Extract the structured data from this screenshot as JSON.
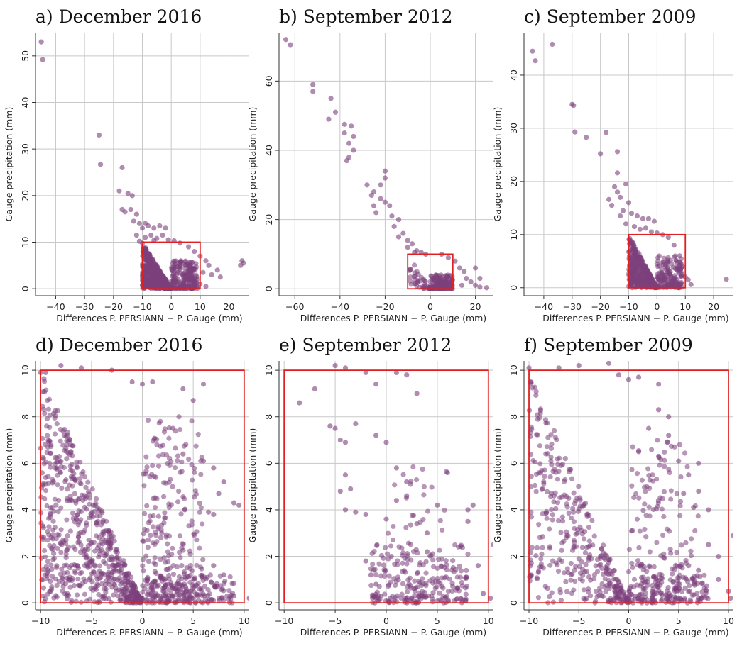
{
  "chart_data": [
    {
      "type": "scatter",
      "title": "a)  December  2016",
      "xlabel": "Differences P. PERSIANN − P. Gauge (mm)",
      "ylabel": "Gauge precipitation (mm)",
      "xlim": [
        -47,
        27
      ],
      "ylim": [
        -1.5,
        55
      ],
      "xticks": [
        -40,
        -30,
        -20,
        -10,
        0,
        10,
        20
      ],
      "yticks": [
        0,
        10,
        20,
        30,
        40,
        50
      ],
      "grid": true,
      "point_color": "#7b3f7b",
      "box_color": "#e02020",
      "box": {
        "x": [
          -10,
          10
        ],
        "y": [
          0,
          10
        ]
      },
      "points": [
        [
          -45,
          53
        ],
        [
          -44.5,
          49.2
        ],
        [
          -25,
          33
        ],
        [
          -24.5,
          26.7
        ],
        [
          -17,
          26
        ],
        [
          -18,
          21
        ],
        [
          -15,
          20.5
        ],
        [
          -13.5,
          20
        ],
        [
          -17,
          17
        ],
        [
          -16,
          16.5
        ],
        [
          -14,
          17
        ],
        [
          -12,
          16
        ],
        [
          -13,
          14.5
        ],
        [
          -11,
          14
        ],
        [
          -10,
          13
        ],
        [
          -9,
          14
        ],
        [
          -8,
          13.5
        ],
        [
          -6,
          13
        ],
        [
          -4,
          13.5
        ],
        [
          -2,
          13
        ],
        [
          -12,
          11.5
        ],
        [
          -9,
          11
        ],
        [
          -7,
          11.5
        ],
        [
          -5,
          10.8
        ],
        [
          -3,
          11.5
        ],
        [
          -1,
          10.5
        ],
        [
          -11,
          10.2
        ],
        [
          -6,
          10.4
        ],
        [
          1,
          10.3
        ],
        [
          3,
          9.8
        ],
        [
          6,
          9
        ],
        [
          8,
          8
        ],
        [
          10,
          7
        ],
        [
          12,
          6
        ],
        [
          13,
          5
        ],
        [
          16,
          4
        ],
        [
          17,
          2.5
        ],
        [
          11,
          3.5
        ],
        [
          14,
          3
        ],
        [
          10,
          1
        ],
        [
          12,
          0.5
        ],
        [
          24.5,
          6
        ],
        [
          25,
          5.5
        ],
        [
          24,
          5
        ],
        [
          7,
          2
        ],
        [
          8,
          1.5
        ],
        [
          9,
          0.4
        ]
      ],
      "dense_clusters": [
        {
          "x_min": -10,
          "x_max": 0,
          "y_min": 0,
          "y_max": 10,
          "n": 600,
          "wedge": true
        },
        {
          "x_min": 0,
          "x_max": 9,
          "y_min": 0,
          "y_max": 6,
          "n": 200,
          "wedge": false
        }
      ]
    },
    {
      "type": "scatter",
      "title": "b)  September  2012",
      "xlabel": "Differences P. PERSIANN − P. Gauge (mm)",
      "ylabel": "Gauge precipitation (mm)",
      "xlim": [
        -67,
        28
      ],
      "ylim": [
        -2,
        74
      ],
      "xticks": [
        -60,
        -40,
        -20,
        0,
        20
      ],
      "yticks": [
        0,
        20,
        40,
        60
      ],
      "grid": true,
      "point_color": "#7b3f7b",
      "box_color": "#e02020",
      "box": {
        "x": [
          -10,
          10
        ],
        "y": [
          0,
          10
        ]
      },
      "points": [
        [
          -64,
          72
        ],
        [
          -62,
          70.5
        ],
        [
          -52,
          59
        ],
        [
          -52,
          57
        ],
        [
          -44,
          55
        ],
        [
          -42,
          51
        ],
        [
          -45,
          49
        ],
        [
          -38,
          47.5
        ],
        [
          -35,
          47
        ],
        [
          -38,
          45
        ],
        [
          -34,
          44
        ],
        [
          -36,
          42
        ],
        [
          -34,
          40
        ],
        [
          -36,
          38
        ],
        [
          -37,
          37
        ],
        [
          -28,
          30
        ],
        [
          -25,
          28
        ],
        [
          -26,
          27
        ],
        [
          -22,
          26
        ],
        [
          -25,
          24
        ],
        [
          -24,
          22
        ],
        [
          -20,
          34
        ],
        [
          -20,
          32
        ],
        [
          -22,
          30
        ],
        [
          -20,
          25
        ],
        [
          -18,
          24
        ],
        [
          -17,
          21
        ],
        [
          -14,
          20
        ],
        [
          -16,
          18
        ],
        [
          -12,
          16
        ],
        [
          -14,
          15
        ],
        [
          -10,
          14
        ],
        [
          -8,
          13
        ],
        [
          -10,
          12
        ],
        [
          -6,
          11
        ],
        [
          -7,
          10.5
        ],
        [
          -4,
          10.5
        ],
        [
          -2,
          10
        ],
        [
          5,
          10
        ],
        [
          8,
          9
        ],
        [
          11,
          8
        ],
        [
          13,
          6
        ],
        [
          15,
          5
        ],
        [
          16,
          3
        ],
        [
          18,
          2
        ],
        [
          20,
          1
        ],
        [
          22,
          0.5
        ],
        [
          25,
          0.3
        ],
        [
          20,
          6
        ],
        [
          22,
          3
        ],
        [
          14,
          1
        ]
      ],
      "dense_clusters": [
        {
          "x_min": -10,
          "x_max": 2,
          "y_min": 0,
          "y_max": 9,
          "n": 50,
          "wedge": true
        },
        {
          "x_min": 0,
          "x_max": 10,
          "y_min": 0,
          "y_max": 4,
          "n": 140,
          "wedge": false
        }
      ]
    },
    {
      "type": "scatter",
      "title": "c)  September  2009",
      "xlabel": "Differences P. PERSIANN − P. Gauge (mm)",
      "ylabel": "Gauge precipitation (mm)",
      "xlim": [
        -47,
        27
      ],
      "ylim": [
        -1.5,
        48
      ],
      "xticks": [
        -40,
        -30,
        -20,
        -10,
        0,
        10,
        20
      ],
      "yticks": [
        0,
        10,
        20,
        30,
        40
      ],
      "grid": true,
      "point_color": "#7b3f7b",
      "box_color": "#e02020",
      "box": {
        "x": [
          -10,
          10
        ],
        "y": [
          0,
          10
        ]
      },
      "points": [
        [
          -44,
          44.5
        ],
        [
          -43,
          42.7
        ],
        [
          -37,
          45.8
        ],
        [
          -30,
          34.5
        ],
        [
          -29.5,
          34.3
        ],
        [
          -29,
          29.3
        ],
        [
          -25,
          28.3
        ],
        [
          -18,
          29.2
        ],
        [
          -20,
          25.2
        ],
        [
          -14,
          25.6
        ],
        [
          -14,
          21.6
        ],
        [
          -15,
          19
        ],
        [
          -14,
          18
        ],
        [
          -11,
          19.5
        ],
        [
          -13,
          17
        ],
        [
          -17,
          16.6
        ],
        [
          -16,
          15.5
        ],
        [
          -10,
          16
        ],
        [
          -12,
          14.5
        ],
        [
          -9,
          14
        ],
        [
          -7,
          13.5
        ],
        [
          -5,
          13
        ],
        [
          -3,
          13
        ],
        [
          -1,
          12.5
        ],
        [
          -13,
          13.5
        ],
        [
          -11,
          12
        ],
        [
          -8,
          11.5
        ],
        [
          -6,
          11
        ],
        [
          -4,
          11.2
        ],
        [
          -2,
          10.5
        ],
        [
          0,
          10.3
        ],
        [
          2,
          10
        ],
        [
          4,
          9.5
        ],
        [
          6,
          8
        ],
        [
          8,
          6
        ],
        [
          9,
          4
        ],
        [
          10,
          2
        ],
        [
          11,
          1.5
        ],
        [
          12,
          0.6
        ],
        [
          24.5,
          1.6
        ]
      ],
      "dense_clusters": [
        {
          "x_min": -10,
          "x_max": 0,
          "y_min": 0,
          "y_max": 10,
          "n": 420,
          "wedge": true
        },
        {
          "x_min": 0,
          "x_max": 9,
          "y_min": 0,
          "y_max": 6,
          "n": 150,
          "wedge": false
        }
      ]
    },
    {
      "type": "scatter",
      "title": "d)  December  2016",
      "xlabel": "Differences P. PERSIANN − P. Gauge (mm)",
      "ylabel": "Gauge precipitation (mm)",
      "xlim": [
        -10.5,
        10.5
      ],
      "ylim": [
        -0.3,
        10.4
      ],
      "xticks": [
        -10,
        -5,
        0,
        5,
        10
      ],
      "yticks": [
        0,
        2,
        4,
        6,
        8,
        10
      ],
      "grid": true,
      "point_color": "#7b3f7b",
      "box_color": "#e02020",
      "box": {
        "x": [
          -10,
          10
        ],
        "y": [
          0,
          10
        ]
      },
      "points": [
        [
          -10,
          9.9
        ],
        [
          -9.5,
          9.9
        ],
        [
          -8,
          10.2
        ],
        [
          -6,
          10.1
        ],
        [
          -3,
          10
        ],
        [
          -1,
          9.5
        ],
        [
          0,
          9.4
        ],
        [
          1,
          9.5
        ],
        [
          4,
          9.2
        ],
        [
          6,
          9.4
        ],
        [
          5,
          8.7
        ],
        [
          3,
          7.5
        ],
        [
          4,
          6.4
        ],
        [
          6,
          6.1
        ],
        [
          7,
          5.8
        ],
        [
          6.5,
          3.9
        ],
        [
          7,
          3.8
        ],
        [
          7.5,
          4.7
        ],
        [
          8,
          5.2
        ],
        [
          9,
          4.3
        ],
        [
          9.5,
          4.2
        ],
        [
          10.5,
          0.2
        ],
        [
          9,
          0.3
        ],
        [
          8,
          1.2
        ],
        [
          7,
          1.6
        ]
      ],
      "dense_clusters": [
        {
          "x_min": -10,
          "x_max": 0,
          "y_min": 0,
          "y_max": 10,
          "n": 650,
          "wedge": true
        },
        {
          "x_min": 0,
          "x_max": 6,
          "y_min": 0,
          "y_max": 8,
          "n": 240,
          "wedge": false
        },
        {
          "x_min": 0,
          "x_max": 9,
          "y_min": 0,
          "y_max": 1.2,
          "n": 160,
          "wedge": false
        }
      ]
    },
    {
      "type": "scatter",
      "title": "e)  September  2012",
      "xlabel": "Differences P. PERSIANN − P. Gauge (mm)",
      "ylabel": "Gauge precipitation (mm)",
      "xlim": [
        -10.5,
        10.5
      ],
      "ylim": [
        -0.3,
        10.4
      ],
      "xticks": [
        -10,
        -5,
        0,
        5,
        10
      ],
      "yticks": [
        0,
        2,
        4,
        6,
        8,
        10
      ],
      "grid": true,
      "point_color": "#7b3f7b",
      "box_color": "#e02020",
      "box": {
        "x": [
          -10,
          10
        ],
        "y": [
          0,
          10
        ]
      },
      "points": [
        [
          -8.5,
          8.6
        ],
        [
          -7,
          9.2
        ],
        [
          -5,
          10.2
        ],
        [
          -4,
          10.1
        ],
        [
          -2,
          9.9
        ],
        [
          -1,
          9.4
        ],
        [
          1,
          9.9
        ],
        [
          2,
          9.8
        ],
        [
          3,
          9
        ],
        [
          -5.5,
          7.6
        ],
        [
          -5,
          7.5
        ],
        [
          -4.5,
          7
        ],
        [
          -4,
          6.9
        ],
        [
          -3,
          7.7
        ],
        [
          -4,
          5.5
        ],
        [
          -4.5,
          4.8
        ],
        [
          -3.5,
          4.9
        ],
        [
          -4,
          4
        ],
        [
          -3,
          3.9
        ],
        [
          -2,
          3.8
        ],
        [
          -1,
          7.2
        ],
        [
          0,
          6.9
        ],
        [
          1,
          5.8
        ],
        [
          2,
          5.2
        ],
        [
          1,
          4.4
        ],
        [
          0,
          3.6
        ],
        [
          2,
          4.6
        ],
        [
          3,
          3.4
        ],
        [
          4,
          3
        ],
        [
          5,
          4.2
        ],
        [
          6,
          5.6
        ],
        [
          4,
          2.2
        ],
        [
          8,
          4
        ],
        [
          8.5,
          4.2
        ],
        [
          10.5,
          2.5
        ],
        [
          8,
          3.5
        ],
        [
          9,
          1.6
        ],
        [
          9.5,
          0.4
        ],
        [
          10.2,
          0.2
        ],
        [
          0.5,
          2
        ],
        [
          -2,
          1.8
        ],
        [
          -1.5,
          1.2
        ],
        [
          -1,
          0.8
        ]
      ],
      "dense_clusters": [
        {
          "x_min": -1.5,
          "x_max": 8,
          "y_min": 0,
          "y_max": 2.5,
          "n": 200,
          "wedge": false
        },
        {
          "x_min": 0,
          "x_max": 6,
          "y_min": 0,
          "y_max": 6,
          "n": 60,
          "wedge": false
        }
      ]
    },
    {
      "type": "scatter",
      "title": "f)  September  2009",
      "xlabel": "Differences P. PERSIANN − P. Gauge (mm)",
      "ylabel": "Gauge precipitation (mm)",
      "xlim": [
        -10.5,
        10.5
      ],
      "ylim": [
        -0.3,
        10.4
      ],
      "xticks": [
        -10,
        -5,
        0,
        5,
        10
      ],
      "yticks": [
        0,
        2,
        4,
        6,
        8,
        10
      ],
      "grid": true,
      "point_color": "#7b3f7b",
      "box_color": "#e02020",
      "box": {
        "x": [
          -10,
          10
        ],
        "y": [
          0,
          10
        ]
      },
      "points": [
        [
          -10,
          10.1
        ],
        [
          -7,
          10.1
        ],
        [
          -5,
          10.2
        ],
        [
          -2,
          10.3
        ],
        [
          -1,
          9.8
        ],
        [
          0,
          9.6
        ],
        [
          1,
          9.7
        ],
        [
          3,
          9.4
        ],
        [
          3,
          8.3
        ],
        [
          4,
          8
        ],
        [
          4,
          7.2
        ],
        [
          2,
          7.5
        ],
        [
          1,
          6.5
        ],
        [
          3,
          6.3
        ],
        [
          5,
          6.1
        ],
        [
          7,
          6
        ],
        [
          6,
          5.5
        ],
        [
          5.5,
          4.7
        ],
        [
          6.5,
          4.1
        ],
        [
          7,
          4.8
        ],
        [
          8,
          4
        ],
        [
          8,
          2.5
        ],
        [
          9,
          2
        ],
        [
          10.5,
          2.9
        ],
        [
          9,
          1
        ],
        [
          10,
          0.5
        ],
        [
          10.2,
          0.2
        ],
        [
          7,
          1.4
        ],
        [
          6,
          1.6
        ]
      ],
      "dense_clusters": [
        {
          "x_min": -10,
          "x_max": 0,
          "y_min": 0,
          "y_max": 10,
          "n": 360,
          "wedge": true
        },
        {
          "x_min": 0,
          "x_max": 7,
          "y_min": 0,
          "y_max": 7,
          "n": 170,
          "wedge": false
        },
        {
          "x_min": 0,
          "x_max": 8,
          "y_min": 0,
          "y_max": 1.2,
          "n": 120,
          "wedge": false
        }
      ]
    }
  ]
}
